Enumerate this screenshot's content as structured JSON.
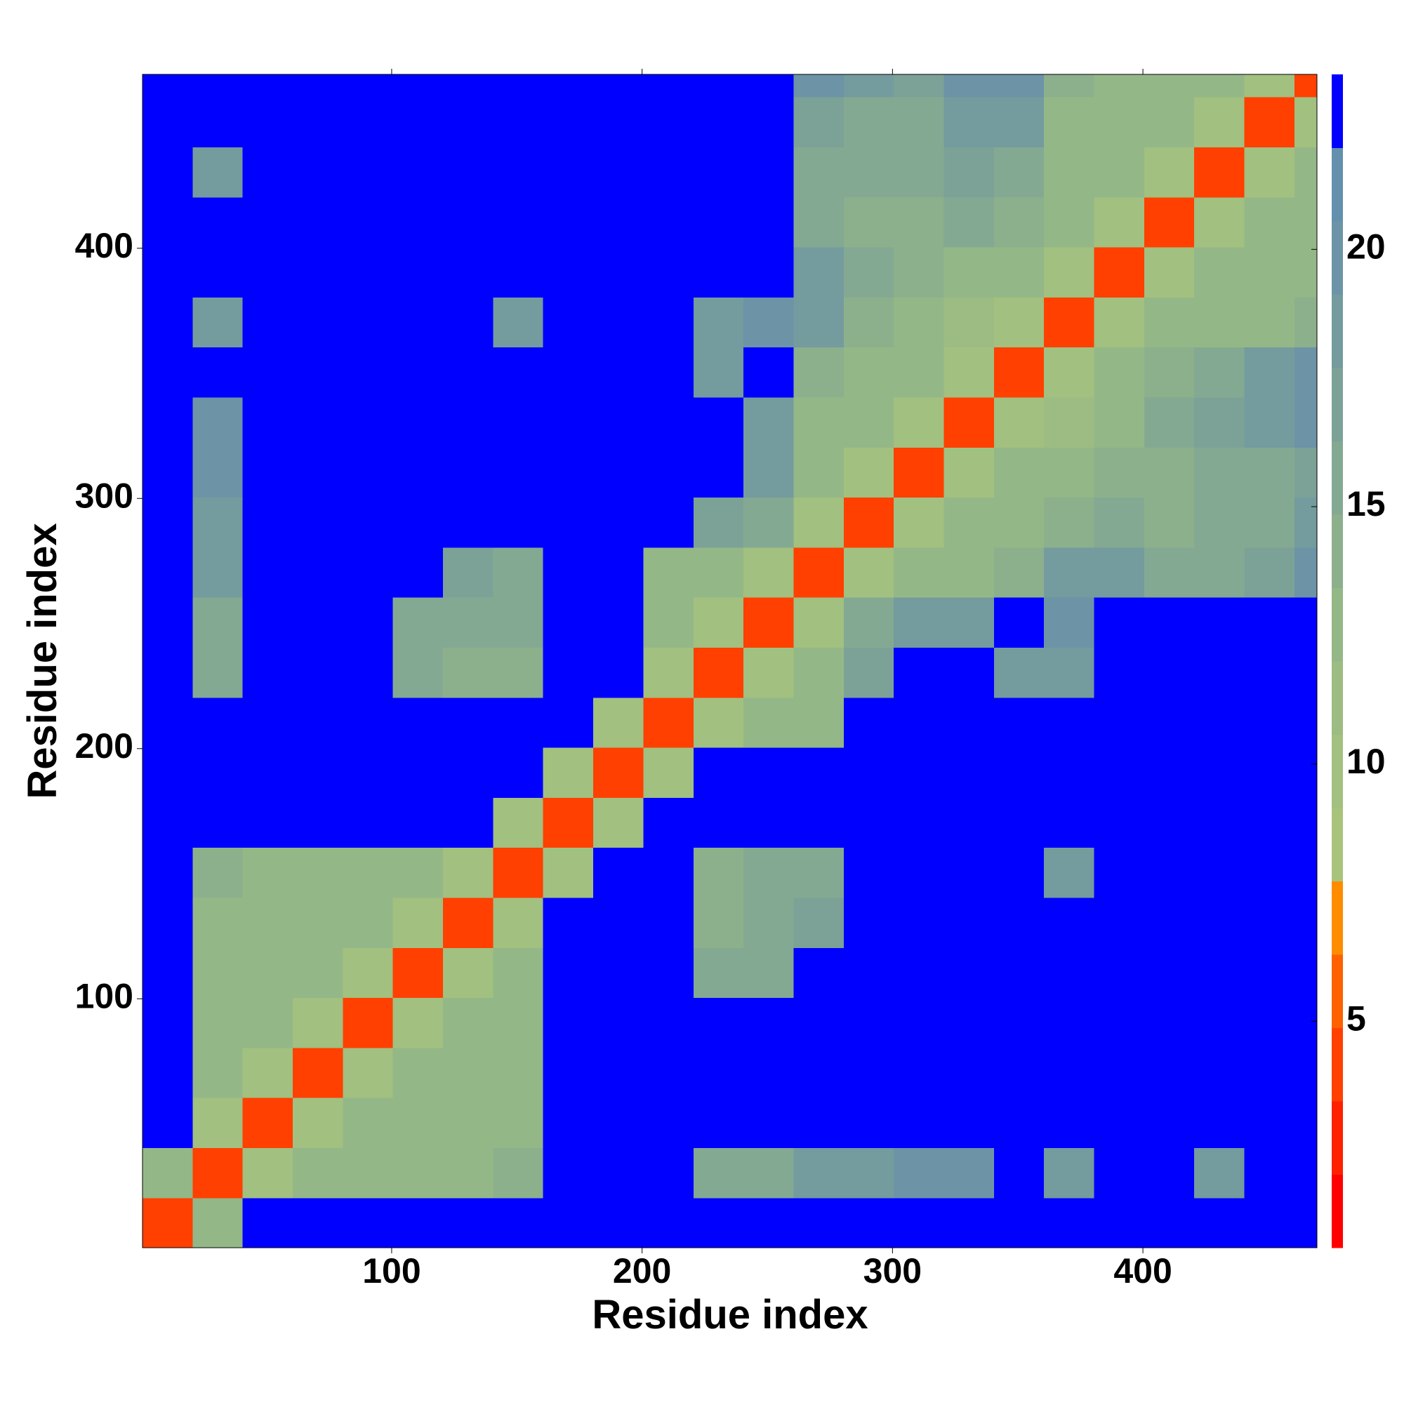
{
  "chart_data": {
    "type": "heatmap",
    "xlabel": "Residue index",
    "ylabel": "Residue index",
    "xbins": [
      0.5,
      20.5,
      40.5,
      60.5,
      80.5,
      100.5,
      120.5,
      140.5,
      160.5,
      180.5,
      200.5,
      220.5,
      240.5,
      260.5,
      280.5,
      300.5,
      320.5,
      340.5,
      360.5,
      380.5,
      400.5,
      420.5,
      440.5,
      460.5,
      469.5
    ],
    "ybins": [
      0.5,
      20.5,
      40.5,
      60.5,
      80.5,
      100.5,
      120.5,
      140.5,
      160.5,
      180.5,
      200.5,
      220.5,
      240.5,
      260.5,
      280.5,
      300.5,
      320.5,
      340.5,
      360.5,
      380.5,
      400.5,
      420.5,
      440.5,
      460.5,
      469.5
    ],
    "z": [
      [
        4,
        12,
        23,
        23,
        23,
        23,
        23,
        23,
        23,
        23,
        23,
        23,
        23,
        23,
        23,
        23,
        23,
        23,
        23,
        23,
        23,
        23,
        23,
        23
      ],
      [
        12,
        4,
        10,
        12,
        12,
        12,
        13,
        14,
        23,
        23,
        23,
        15,
        15,
        19,
        19,
        20,
        20,
        23,
        19,
        23,
        23,
        19,
        23,
        23
      ],
      [
        23,
        10,
        4,
        10,
        12,
        12,
        12,
        12,
        23,
        23,
        23,
        23,
        23,
        23,
        23,
        23,
        23,
        23,
        23,
        23,
        23,
        23,
        23,
        23
      ],
      [
        23,
        12,
        10,
        4,
        10,
        12,
        12,
        12,
        23,
        23,
        23,
        23,
        23,
        23,
        23,
        23,
        23,
        23,
        23,
        23,
        23,
        23,
        23,
        23
      ],
      [
        23,
        12,
        12,
        10,
        4,
        10,
        12,
        12,
        23,
        23,
        23,
        23,
        23,
        23,
        23,
        23,
        23,
        23,
        23,
        23,
        23,
        23,
        23,
        23
      ],
      [
        23,
        12,
        12,
        12,
        10,
        4,
        10,
        12,
        23,
        23,
        23,
        15,
        16,
        23,
        23,
        23,
        23,
        23,
        23,
        23,
        23,
        23,
        23,
        23
      ],
      [
        23,
        13,
        12,
        12,
        12,
        10,
        4,
        10,
        23,
        23,
        23,
        14,
        15,
        17,
        23,
        23,
        23,
        23,
        23,
        23,
        23,
        23,
        23,
        23
      ],
      [
        23,
        14,
        12,
        12,
        12,
        12,
        10,
        4,
        10,
        23,
        23,
        14,
        15,
        16,
        23,
        23,
        23,
        23,
        19,
        23,
        23,
        23,
        23,
        23
      ],
      [
        23,
        23,
        23,
        23,
        23,
        23,
        23,
        10,
        4,
        10,
        23,
        23,
        23,
        23,
        23,
        23,
        23,
        23,
        23,
        23,
        23,
        23,
        23,
        23
      ],
      [
        23,
        23,
        23,
        23,
        23,
        23,
        23,
        23,
        10,
        4,
        10,
        23,
        23,
        23,
        23,
        23,
        23,
        23,
        23,
        23,
        23,
        23,
        23,
        23
      ],
      [
        23,
        23,
        23,
        23,
        23,
        23,
        23,
        23,
        23,
        10,
        4,
        10,
        12,
        13,
        23,
        23,
        23,
        23,
        23,
        23,
        23,
        23,
        23,
        23
      ],
      [
        23,
        15,
        23,
        23,
        23,
        15,
        14,
        14,
        23,
        23,
        10,
        4,
        10,
        12,
        17,
        23,
        23,
        19,
        19,
        23,
        23,
        23,
        23,
        23
      ],
      [
        23,
        15,
        23,
        23,
        23,
        16,
        15,
        15,
        23,
        23,
        12,
        10,
        4,
        10,
        15,
        18,
        19,
        23,
        20,
        23,
        23,
        23,
        23,
        23
      ],
      [
        23,
        19,
        23,
        23,
        23,
        23,
        17,
        16,
        23,
        23,
        13,
        12,
        10,
        4,
        10,
        12,
        13,
        14,
        18,
        18,
        16,
        16,
        17,
        20
      ],
      [
        23,
        19,
        23,
        23,
        23,
        23,
        23,
        23,
        23,
        23,
        23,
        17,
        15,
        10,
        4,
        10,
        12,
        12,
        14,
        15,
        14,
        15,
        16,
        18
      ],
      [
        23,
        20,
        23,
        23,
        23,
        23,
        23,
        23,
        23,
        23,
        23,
        23,
        18,
        12,
        10,
        4,
        10,
        12,
        13,
        14,
        14,
        15,
        16,
        17
      ],
      [
        23,
        20,
        23,
        23,
        23,
        23,
        23,
        23,
        23,
        23,
        23,
        23,
        19,
        13,
        12,
        10,
        4,
        10,
        11,
        13,
        15,
        17,
        18,
        20
      ],
      [
        23,
        23,
        23,
        23,
        23,
        23,
        23,
        23,
        23,
        23,
        23,
        19,
        23,
        14,
        12,
        12,
        10,
        4,
        10,
        12,
        14,
        16,
        18,
        20
      ],
      [
        23,
        19,
        23,
        23,
        23,
        23,
        23,
        19,
        23,
        23,
        23,
        19,
        20,
        18,
        14,
        13,
        11,
        10,
        4,
        10,
        12,
        12,
        12,
        14
      ],
      [
        23,
        23,
        23,
        23,
        23,
        23,
        23,
        23,
        23,
        23,
        23,
        23,
        23,
        18,
        15,
        14,
        13,
        12,
        10,
        4,
        10,
        12,
        12,
        12
      ],
      [
        23,
        23,
        23,
        23,
        23,
        23,
        23,
        23,
        23,
        23,
        23,
        23,
        23,
        16,
        14,
        14,
        15,
        14,
        12,
        10,
        4,
        10,
        12,
        12
      ],
      [
        23,
        19,
        23,
        23,
        23,
        23,
        23,
        23,
        23,
        23,
        23,
        23,
        23,
        16,
        15,
        15,
        17,
        16,
        12,
        12,
        10,
        4,
        10,
        12
      ],
      [
        23,
        23,
        23,
        23,
        23,
        23,
        23,
        23,
        23,
        23,
        23,
        23,
        23,
        17,
        16,
        16,
        18,
        18,
        12,
        12,
        12,
        10,
        4,
        10
      ],
      [
        23,
        23,
        23,
        23,
        23,
        23,
        23,
        23,
        23,
        23,
        23,
        23,
        23,
        20,
        18,
        17,
        20,
        20,
        14,
        12,
        12,
        12,
        10,
        4
      ]
    ],
    "xlim": [
      0.5,
      469.5
    ],
    "ylim": [
      0.5,
      469.5
    ],
    "xticks": [
      100,
      200,
      300,
      400
    ],
    "yticks": [
      100,
      200,
      300,
      400
    ],
    "colorbar": {
      "zlim": [
        0.6,
        23.4
      ],
      "zticks": [
        5,
        10,
        15,
        20
      ],
      "colors": [
        "#ff0000",
        "#ff2000",
        "#ff4000",
        "#ff6000",
        "#ff8c00",
        "#a8c47c",
        "#a2c07f",
        "#9cbc83",
        "#94b787",
        "#8cb08c",
        "#84a992",
        "#7ca298",
        "#749b9e",
        "#6c94a6",
        "#6490ae",
        "#0000ff"
      ]
    }
  }
}
